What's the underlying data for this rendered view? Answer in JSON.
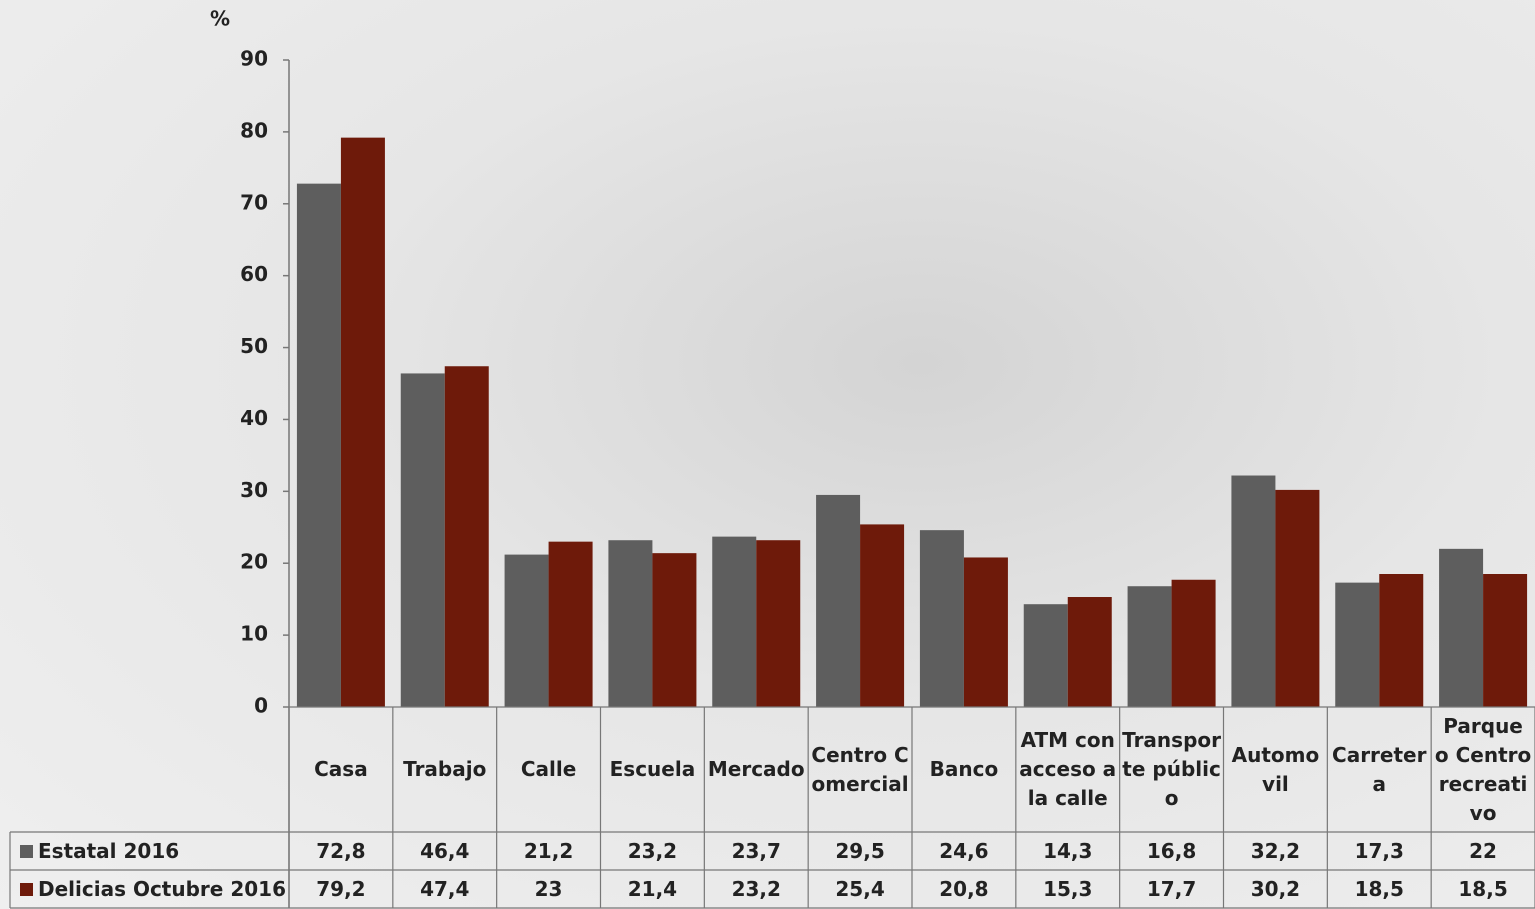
{
  "chart_data": {
    "type": "bar",
    "y_label": "%",
    "categories": [
      "Casa",
      "Trabajo",
      "Calle",
      "Escuela",
      "Mercado",
      "Centro Comercial",
      "Banco",
      "ATM con acceso a la calle",
      "Transporte público",
      "Automovil",
      "Carretera",
      "Parque o Centro recreativo"
    ],
    "series": [
      {
        "name": "Estatal 2016",
        "color": "#5e5e5e",
        "values": [
          72.8,
          46.4,
          21.2,
          23.2,
          23.7,
          29.5,
          24.6,
          14.3,
          16.8,
          32.2,
          17.3,
          22
        ],
        "value_labels": [
          "72,8",
          "46,4",
          "21,2",
          "23,2",
          "23,7",
          "29,5",
          "24,6",
          "14,3",
          "16,8",
          "32,2",
          "17,3",
          "22"
        ]
      },
      {
        "name": "Delicias Octubre 2016",
        "color": "#6e1a0a",
        "values": [
          79.2,
          47.4,
          23,
          21.4,
          23.2,
          25.4,
          20.8,
          15.3,
          17.7,
          30.2,
          18.5,
          18.5
        ],
        "value_labels": [
          "79,2",
          "47,4",
          "23",
          "21,4",
          "23,2",
          "25,4",
          "20,8",
          "15,3",
          "17,7",
          "30,2",
          "18,5",
          "18,5"
        ]
      }
    ],
    "ylim": [
      0,
      90
    ],
    "yticks": [
      0,
      10,
      20,
      30,
      40,
      50,
      60,
      70,
      80,
      90
    ],
    "grid": false,
    "legend": "table"
  }
}
